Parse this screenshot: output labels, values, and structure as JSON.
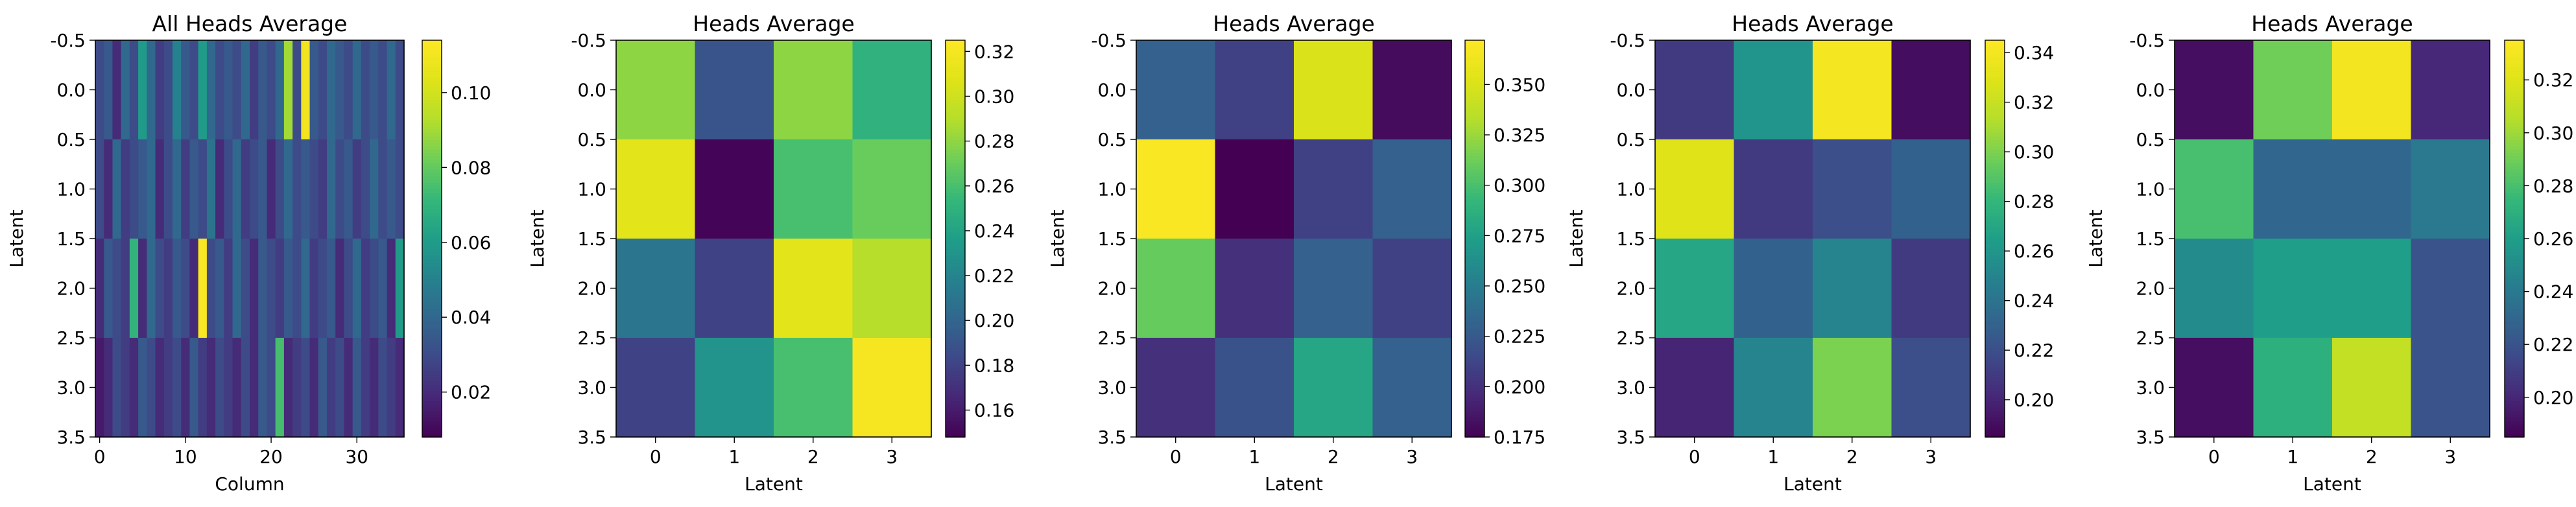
{
  "chart_data": [
    {
      "type": "heatmap",
      "title": "All Heads Average",
      "xlabel": "Column",
      "ylabel": "Latent",
      "cmap": "viridis",
      "xlim": [
        -0.5,
        35.5
      ],
      "ylim": [
        3.5,
        -0.5
      ],
      "xticks": [
        0,
        10,
        20,
        30
      ],
      "yticks": [
        -0.5,
        0.0,
        0.5,
        1.0,
        1.5,
        2.0,
        2.5,
        3.0,
        3.5
      ],
      "colorbar": {
        "min": 0.008,
        "max": 0.114,
        "ticks": [
          0.02,
          0.04,
          0.06,
          0.08,
          0.1
        ]
      },
      "values": [
        [
          0.03,
          0.035,
          0.02,
          0.04,
          0.03,
          0.06,
          0.04,
          0.025,
          0.03,
          0.05,
          0.035,
          0.03,
          0.06,
          0.04,
          0.03,
          0.035,
          0.03,
          0.04,
          0.025,
          0.035,
          0.03,
          0.04,
          0.09,
          0.03,
          0.11,
          0.035,
          0.03,
          0.04,
          0.035,
          0.03,
          0.04,
          0.03,
          0.035,
          0.03,
          0.04,
          0.03
        ],
        [
          0.03,
          0.02,
          0.04,
          0.025,
          0.03,
          0.035,
          0.04,
          0.02,
          0.03,
          0.04,
          0.025,
          0.035,
          0.03,
          0.045,
          0.02,
          0.03,
          0.04,
          0.025,
          0.03,
          0.035,
          0.02,
          0.03,
          0.04,
          0.03,
          0.035,
          0.03,
          0.025,
          0.04,
          0.03,
          0.035,
          0.025,
          0.03,
          0.04,
          0.03,
          0.035,
          0.03
        ],
        [
          0.02,
          0.035,
          0.03,
          0.025,
          0.07,
          0.02,
          0.04,
          0.03,
          0.025,
          0.035,
          0.03,
          0.02,
          0.113,
          0.03,
          0.035,
          0.025,
          0.04,
          0.03,
          0.02,
          0.035,
          0.03,
          0.025,
          0.035,
          0.03,
          0.04,
          0.025,
          0.03,
          0.035,
          0.02,
          0.03,
          0.04,
          0.025,
          0.03,
          0.035,
          0.02,
          0.06
        ],
        [
          0.015,
          0.02,
          0.03,
          0.025,
          0.02,
          0.035,
          0.03,
          0.02,
          0.025,
          0.03,
          0.02,
          0.035,
          0.025,
          0.02,
          0.03,
          0.025,
          0.02,
          0.03,
          0.02,
          0.035,
          0.03,
          0.075,
          0.02,
          0.025,
          0.03,
          0.02,
          0.035,
          0.025,
          0.03,
          0.02,
          0.035,
          0.025,
          0.02,
          0.03,
          0.025,
          0.02
        ]
      ]
    },
    {
      "type": "heatmap",
      "title": "Heads Average",
      "xlabel": "Latent",
      "ylabel": "Latent",
      "cmap": "viridis",
      "xticks": [
        0,
        1,
        2,
        3
      ],
      "yticks": [
        -0.5,
        0.0,
        0.5,
        1.0,
        1.5,
        2.0,
        2.5,
        3.0,
        3.5
      ],
      "colorbar": {
        "min": 0.148,
        "max": 0.325,
        "ticks": [
          0.16,
          0.18,
          0.2,
          0.22,
          0.24,
          0.26,
          0.28,
          0.3,
          0.32
        ]
      },
      "values": [
        [
          0.28,
          0.19,
          0.28,
          0.25
        ],
        [
          0.31,
          0.15,
          0.26,
          0.27
        ],
        [
          0.21,
          0.18,
          0.31,
          0.29
        ],
        [
          0.18,
          0.23,
          0.26,
          0.32
        ]
      ]
    },
    {
      "type": "heatmap",
      "title": "Heads Average",
      "xlabel": "Latent",
      "ylabel": "Latent",
      "cmap": "viridis",
      "xticks": [
        0,
        1,
        2,
        3
      ],
      "yticks": [
        -0.5,
        0.0,
        0.5,
        1.0,
        1.5,
        2.0,
        2.5,
        3.0,
        3.5
      ],
      "colorbar": {
        "min": 0.175,
        "max": 0.372,
        "ticks": [
          0.175,
          0.2,
          0.225,
          0.25,
          0.275,
          0.3,
          0.325,
          0.35
        ]
      },
      "values": [
        [
          0.23,
          0.21,
          0.35,
          0.18
        ],
        [
          0.37,
          0.175,
          0.21,
          0.23
        ],
        [
          0.31,
          0.2,
          0.23,
          0.21
        ],
        [
          0.2,
          0.22,
          0.28,
          0.23
        ]
      ]
    },
    {
      "type": "heatmap",
      "title": "Heads Average",
      "xlabel": "Latent",
      "ylabel": "Latent",
      "cmap": "viridis",
      "xticks": [
        0,
        1,
        2,
        3
      ],
      "yticks": [
        -0.5,
        0.0,
        0.5,
        1.0,
        1.5,
        2.0,
        2.5,
        3.0,
        3.5
      ],
      "colorbar": {
        "min": 0.185,
        "max": 0.345,
        "ticks": [
          0.2,
          0.22,
          0.24,
          0.26,
          0.28,
          0.3,
          0.32,
          0.34
        ]
      },
      "values": [
        [
          0.21,
          0.26,
          0.34,
          0.19
        ],
        [
          0.33,
          0.21,
          0.22,
          0.23
        ],
        [
          0.27,
          0.23,
          0.25,
          0.21
        ],
        [
          0.2,
          0.25,
          0.3,
          0.22
        ]
      ]
    },
    {
      "type": "heatmap",
      "title": "Heads Average",
      "xlabel": "Latent",
      "ylabel": "Latent",
      "cmap": "viridis",
      "xticks": [
        0,
        1,
        2,
        3
      ],
      "yticks": [
        -0.5,
        0.0,
        0.5,
        1.0,
        1.5,
        2.0,
        2.5,
        3.0,
        3.5
      ],
      "colorbar": {
        "min": 0.185,
        "max": 0.335,
        "ticks": [
          0.2,
          0.22,
          0.24,
          0.26,
          0.28,
          0.3,
          0.32
        ]
      },
      "values": [
        [
          0.19,
          0.29,
          0.33,
          0.2
        ],
        [
          0.28,
          0.23,
          0.23,
          0.24
        ],
        [
          0.25,
          0.26,
          0.26,
          0.22
        ],
        [
          0.19,
          0.27,
          0.31,
          0.22
        ]
      ]
    }
  ]
}
